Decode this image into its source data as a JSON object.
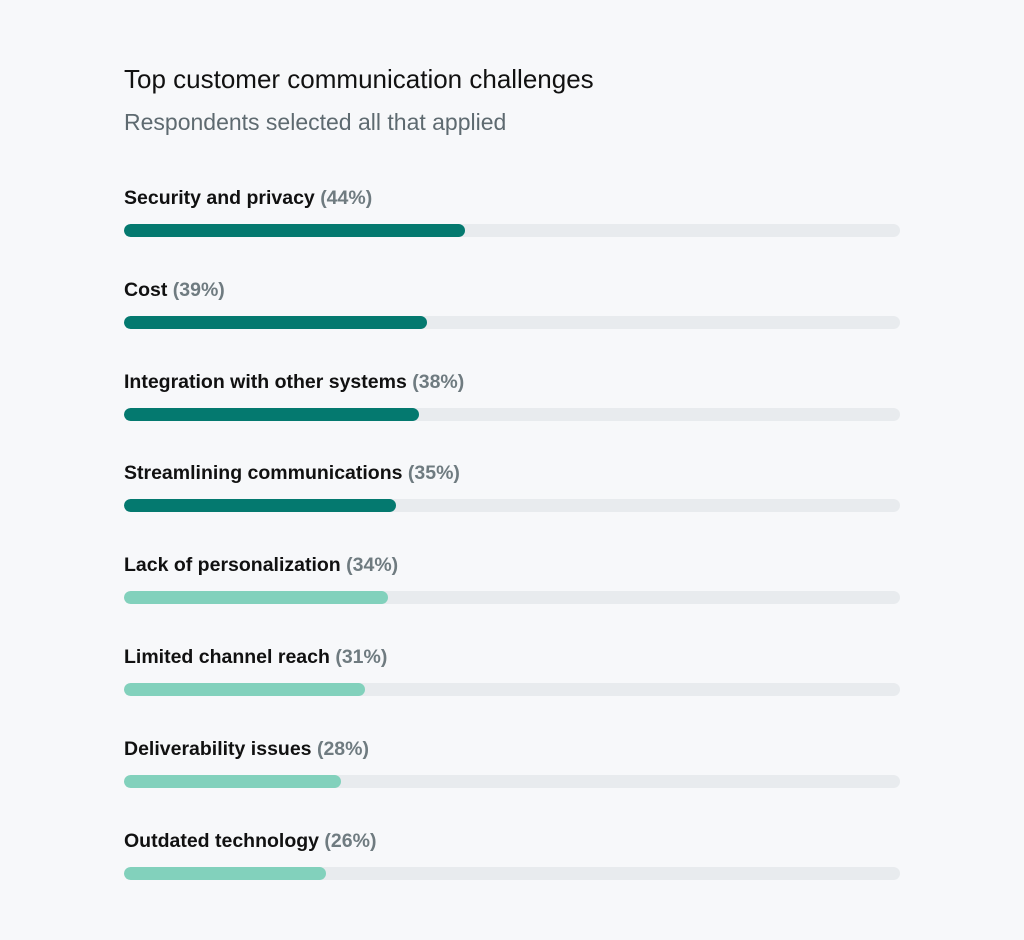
{
  "chart_data": {
    "type": "bar",
    "title": "Top customer communication challenges",
    "subtitle": "Respondents selected all that applied",
    "xlim": [
      0,
      100
    ],
    "categories": [
      "Security and privacy",
      "Cost",
      "Integration with other systems",
      "Streamlining communications",
      "Lack of personalization",
      "Limited channel reach",
      "Deliverability issues",
      "Outdated technology"
    ],
    "values": [
      44,
      39,
      38,
      35,
      34,
      31,
      28,
      26
    ],
    "value_labels": [
      "(44%)",
      "(39%)",
      "(38%)",
      "(35%)",
      "(34%)",
      "(31%)",
      "(28%)",
      "(26%)"
    ],
    "bar_colors": [
      "#04796f",
      "#04796f",
      "#04796f",
      "#04796f",
      "#82d1bc",
      "#82d1bc",
      "#82d1bc",
      "#82d1bc"
    ],
    "track_color": "#e8ebee"
  }
}
